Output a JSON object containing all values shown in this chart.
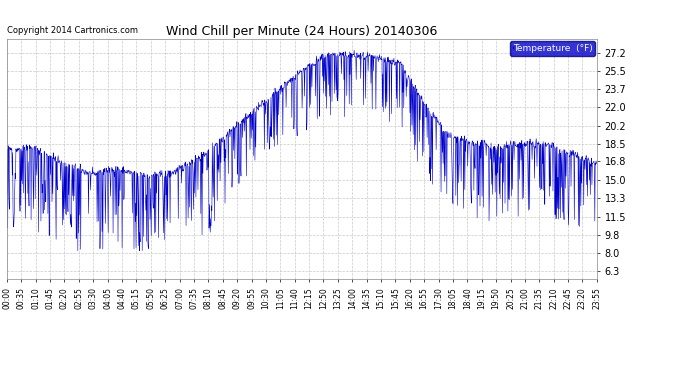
{
  "title": "Wind Chill per Minute (24 Hours) 20140306",
  "copyright": "Copyright 2014 Cartronics.com",
  "legend_label": "Temperature  (°F)",
  "line_color": "#0000cc",
  "background_color": "#ffffff",
  "plot_bg_color": "#ffffff",
  "grid_color": "#bbbbbb",
  "yticks": [
    6.3,
    8.0,
    9.8,
    11.5,
    13.3,
    15.0,
    16.8,
    18.5,
    20.2,
    22.0,
    23.7,
    25.5,
    27.2
  ],
  "ylim": [
    5.5,
    28.5
  ],
  "xtick_labels": [
    "00:00",
    "00:35",
    "01:10",
    "01:45",
    "02:20",
    "02:55",
    "03:30",
    "04:05",
    "04:40",
    "05:15",
    "05:50",
    "06:25",
    "07:00",
    "07:35",
    "08:10",
    "08:45",
    "09:20",
    "09:55",
    "10:30",
    "11:05",
    "11:40",
    "12:15",
    "12:50",
    "13:25",
    "14:00",
    "14:35",
    "15:10",
    "15:45",
    "16:20",
    "16:55",
    "17:30",
    "18:05",
    "18:40",
    "19:15",
    "19:50",
    "20:25",
    "21:00",
    "21:35",
    "22:10",
    "22:45",
    "23:20",
    "23:55"
  ]
}
